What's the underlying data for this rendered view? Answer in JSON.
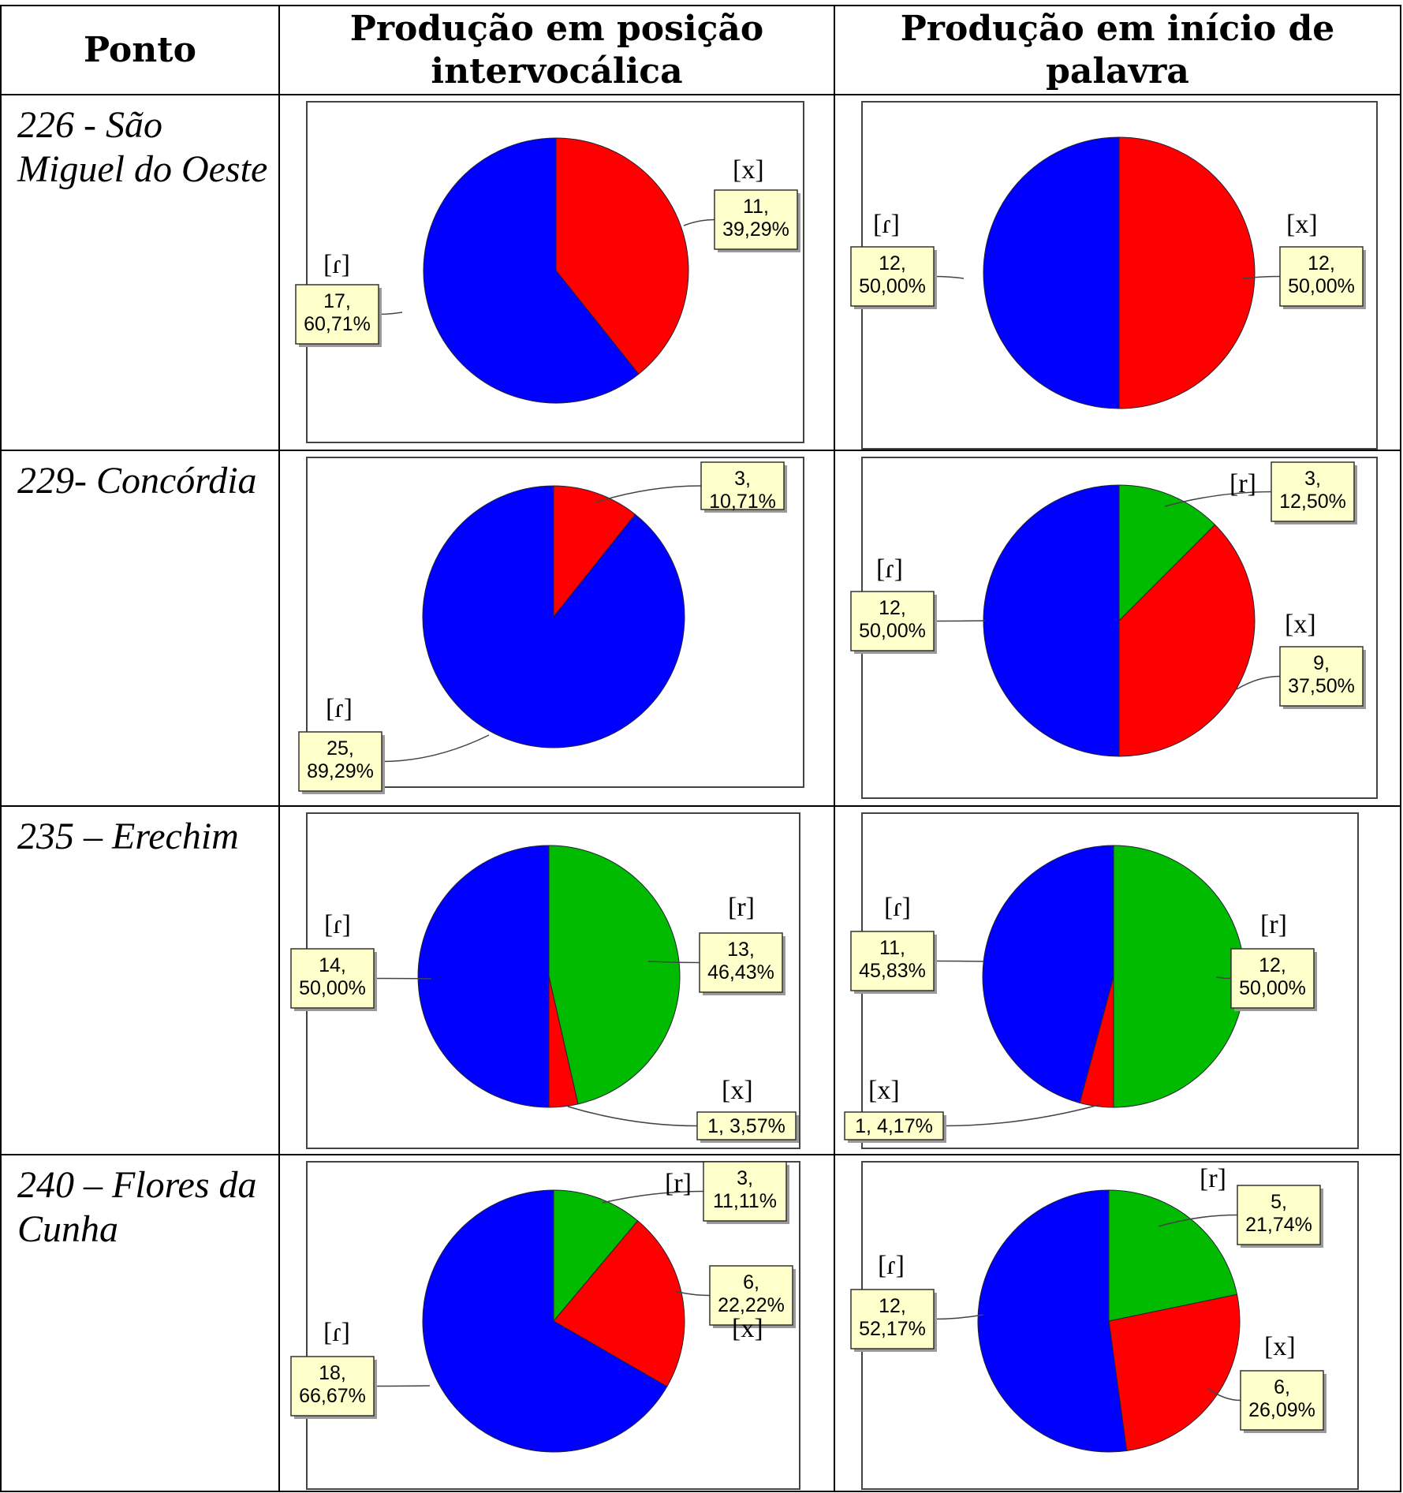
{
  "headers": [
    "Ponto",
    "Produção em posição intervocálica",
    "Produção em início de palavra"
  ],
  "rows": [
    {
      "place": "226 - São Miguel do Oeste"
    },
    {
      "place": "229- Concórdia"
    },
    {
      "place": "235 – Erechim"
    },
    {
      "place": "240 – Flores da Cunha"
    }
  ],
  "colors": {
    "blue": "#0000ff",
    "red": "#ff0000",
    "green": "#00bb00"
  },
  "chart_data": [
    {
      "type": "pie",
      "row": 0,
      "col": "Produção em posição intervocálica",
      "slices": [
        {
          "label": "[x]",
          "value": 11,
          "percent": "39,29%",
          "color": "#ff0000"
        },
        {
          "label": "[ɾ]",
          "value": 17,
          "percent": "60,71%",
          "color": "#0000ff"
        }
      ]
    },
    {
      "type": "pie",
      "row": 0,
      "col": "Produção em início de palavra",
      "slices": [
        {
          "label": "[x]",
          "value": 12,
          "percent": "50,00%",
          "color": "#ff0000"
        },
        {
          "label": "[ɾ]",
          "value": 12,
          "percent": "50,00%",
          "color": "#0000ff"
        }
      ]
    },
    {
      "type": "pie",
      "row": 1,
      "col": "Produção em posição intervocálica",
      "slices": [
        {
          "label": "",
          "value": 3,
          "percent": "10,71%",
          "color": "#ff0000"
        },
        {
          "label": "[ɾ]",
          "value": 25,
          "percent": "89,29%",
          "color": "#0000ff"
        }
      ]
    },
    {
      "type": "pie",
      "row": 1,
      "col": "Produção em início de palavra",
      "slices": [
        {
          "label": "[r]",
          "value": 3,
          "percent": "12,50%",
          "color": "#00bb00"
        },
        {
          "label": "[x]",
          "value": 9,
          "percent": "37,50%",
          "color": "#ff0000"
        },
        {
          "label": "[ɾ]",
          "value": 12,
          "percent": "50,00%",
          "color": "#0000ff"
        }
      ]
    },
    {
      "type": "pie",
      "row": 2,
      "col": "Produção em posição intervocálica",
      "slices": [
        {
          "label": "[r]",
          "value": 13,
          "percent": "46,43%",
          "color": "#00bb00"
        },
        {
          "label": "[x]",
          "value": 1,
          "percent": "3,57%",
          "color": "#ff0000"
        },
        {
          "label": "[ɾ]",
          "value": 14,
          "percent": "50,00%",
          "color": "#0000ff"
        }
      ]
    },
    {
      "type": "pie",
      "row": 2,
      "col": "Produção em início de palavra",
      "slices": [
        {
          "label": "[r]",
          "value": 12,
          "percent": "50,00%",
          "color": "#00bb00"
        },
        {
          "label": "[x]",
          "value": 1,
          "percent": "4,17%",
          "color": "#ff0000"
        },
        {
          "label": "[ɾ]",
          "value": 11,
          "percent": "45,83%",
          "color": "#0000ff"
        }
      ]
    },
    {
      "type": "pie",
      "row": 3,
      "col": "Produção em posição intervocálica",
      "slices": [
        {
          "label": "[r]",
          "value": 3,
          "percent": "11,11%",
          "color": "#00bb00"
        },
        {
          "label": "[x]",
          "value": 6,
          "percent": "22,22%",
          "color": "#ff0000"
        },
        {
          "label": "[ɾ]",
          "value": 18,
          "percent": "66,67%",
          "color": "#0000ff"
        }
      ]
    },
    {
      "type": "pie",
      "row": 3,
      "col": "Produção em início de palavra",
      "slices": [
        {
          "label": "[r]",
          "value": 5,
          "percent": "21,74%",
          "color": "#00bb00"
        },
        {
          "label": "[x]",
          "value": 6,
          "percent": "26,09%",
          "color": "#ff0000"
        },
        {
          "label": "[ɾ]",
          "value": 12,
          "percent": "52,17%",
          "color": "#0000ff"
        }
      ]
    }
  ]
}
